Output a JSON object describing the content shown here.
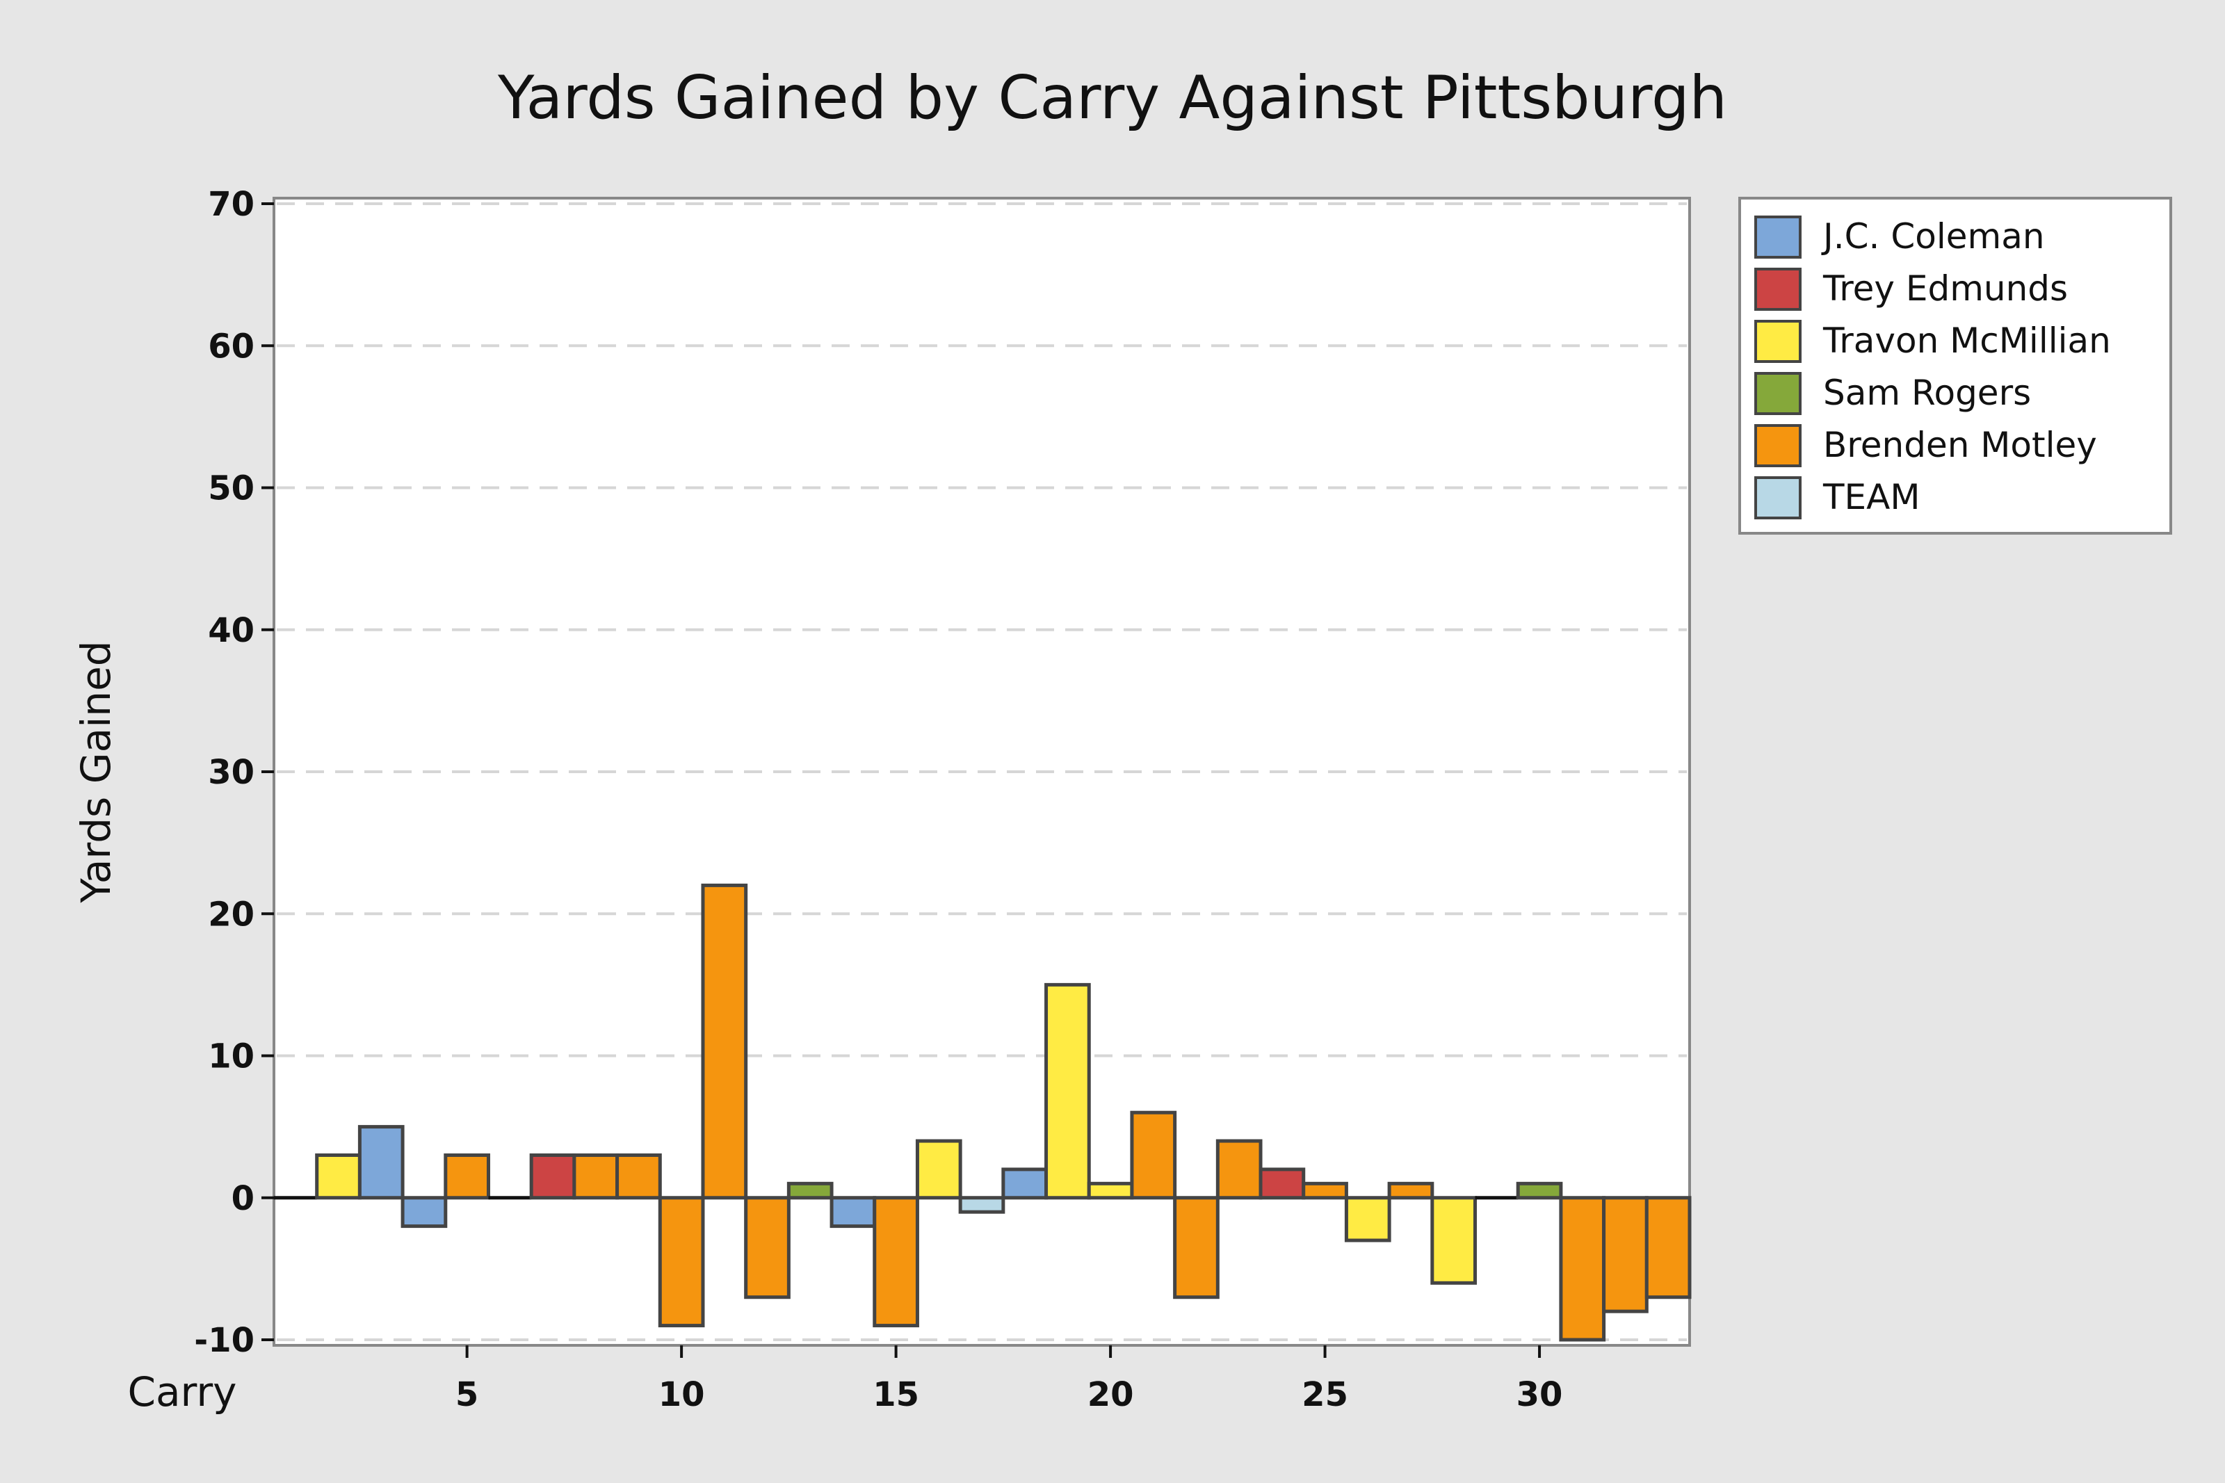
{
  "chart_data": {
    "type": "bar",
    "title": "Yards Gained by Carry Against Pittsburgh",
    "xlabel": "Carry",
    "ylabel": "Yards Gained",
    "ylim": [
      -10,
      70
    ],
    "yticks": [
      -10,
      0,
      10,
      20,
      30,
      40,
      50,
      60,
      70
    ],
    "xticks": [
      5,
      10,
      15,
      20,
      25,
      30
    ],
    "xlim": [
      0.5,
      33.5
    ],
    "grid": "horizontal-dashed",
    "legend_position": "right",
    "series": [
      {
        "name": "J.C. Coleman",
        "color": "#7da7d9"
      },
      {
        "name": "Trey Edmunds",
        "color": "#cc4444"
      },
      {
        "name": "Travon McMillian",
        "color": "#ffeb44"
      },
      {
        "name": "Sam Rogers",
        "color": "#85a83a"
      },
      {
        "name": "Brenden Motley",
        "color": "#f5950f"
      },
      {
        "name": "TEAM",
        "color": "#b8d8e6"
      }
    ],
    "bars": [
      {
        "carry": 1,
        "value": 0,
        "player": "Travon McMillian"
      },
      {
        "carry": 2,
        "value": 3,
        "player": "Travon McMillian"
      },
      {
        "carry": 3,
        "value": 5,
        "player": "J.C. Coleman"
      },
      {
        "carry": 4,
        "value": -2,
        "player": "J.C. Coleman"
      },
      {
        "carry": 5,
        "value": 3,
        "player": "Brenden Motley"
      },
      {
        "carry": 6,
        "value": 0,
        "player": "Brenden Motley"
      },
      {
        "carry": 7,
        "value": 3,
        "player": "Trey Edmunds"
      },
      {
        "carry": 8,
        "value": 3,
        "player": "Brenden Motley"
      },
      {
        "carry": 9,
        "value": 3,
        "player": "Brenden Motley"
      },
      {
        "carry": 10,
        "value": -9,
        "player": "Brenden Motley"
      },
      {
        "carry": 11,
        "value": 22,
        "player": "Brenden Motley"
      },
      {
        "carry": 12,
        "value": -7,
        "player": "Brenden Motley"
      },
      {
        "carry": 13,
        "value": 1,
        "player": "Sam Rogers"
      },
      {
        "carry": 14,
        "value": -2,
        "player": "J.C. Coleman"
      },
      {
        "carry": 15,
        "value": -9,
        "player": "Brenden Motley"
      },
      {
        "carry": 16,
        "value": 4,
        "player": "Travon McMillian"
      },
      {
        "carry": 17,
        "value": -1,
        "player": "TEAM"
      },
      {
        "carry": 18,
        "value": 2,
        "player": "J.C. Coleman"
      },
      {
        "carry": 19,
        "value": 15,
        "player": "Travon McMillian"
      },
      {
        "carry": 20,
        "value": 1,
        "player": "Travon McMillian"
      },
      {
        "carry": 21,
        "value": 6,
        "player": "Brenden Motley"
      },
      {
        "carry": 22,
        "value": -7,
        "player": "Brenden Motley"
      },
      {
        "carry": 23,
        "value": 4,
        "player": "Brenden Motley"
      },
      {
        "carry": 24,
        "value": 2,
        "player": "Trey Edmunds"
      },
      {
        "carry": 25,
        "value": 1,
        "player": "Brenden Motley"
      },
      {
        "carry": 26,
        "value": -3,
        "player": "Travon McMillian"
      },
      {
        "carry": 27,
        "value": 1,
        "player": "Brenden Motley"
      },
      {
        "carry": 28,
        "value": -6,
        "player": "Travon McMillian"
      },
      {
        "carry": 29,
        "value": 0,
        "player": "Sam Rogers"
      },
      {
        "carry": 30,
        "value": 1,
        "player": "Sam Rogers"
      },
      {
        "carry": 31,
        "value": -10,
        "player": "Brenden Motley"
      },
      {
        "carry": 32,
        "value": -8,
        "player": "Brenden Motley"
      },
      {
        "carry": 33,
        "value": -7,
        "player": "Brenden Motley"
      }
    ]
  }
}
